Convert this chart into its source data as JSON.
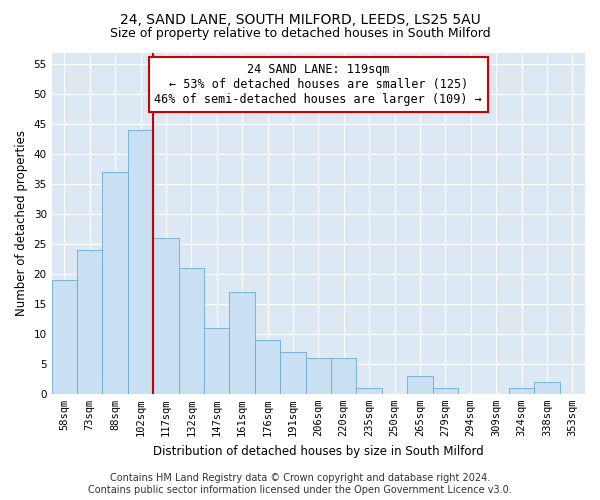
{
  "title1": "24, SAND LANE, SOUTH MILFORD, LEEDS, LS25 5AU",
  "title2": "Size of property relative to detached houses in South Milford",
  "xlabel": "Distribution of detached houses by size in South Milford",
  "ylabel": "Number of detached properties",
  "categories": [
    "58sqm",
    "73sqm",
    "88sqm",
    "102sqm",
    "117sqm",
    "132sqm",
    "147sqm",
    "161sqm",
    "176sqm",
    "191sqm",
    "206sqm",
    "220sqm",
    "235sqm",
    "250sqm",
    "265sqm",
    "279sqm",
    "294sqm",
    "309sqm",
    "324sqm",
    "338sqm",
    "353sqm"
  ],
  "values": [
    19,
    24,
    37,
    44,
    26,
    21,
    11,
    17,
    9,
    7,
    6,
    6,
    1,
    0,
    3,
    1,
    0,
    0,
    1,
    2,
    0
  ],
  "bar_color": "#c9dff2",
  "bar_edge_color": "#6aaad4",
  "vline_x_idx": 3,
  "vline_color": "#cc0000",
  "annotation_text": "24 SAND LANE: 119sqm\n← 53% of detached houses are smaller (125)\n46% of semi-detached houses are larger (109) →",
  "annotation_box_color": "#ffffff",
  "annotation_box_edge": "#cc0000",
  "ylim": [
    0,
    57
  ],
  "yticks": [
    0,
    5,
    10,
    15,
    20,
    25,
    30,
    35,
    40,
    45,
    50,
    55
  ],
  "footer1": "Contains HM Land Registry data © Crown copyright and database right 2024.",
  "footer2": "Contains public sector information licensed under the Open Government Licence v3.0.",
  "bg_color": "#dce9f5",
  "title1_fontsize": 10,
  "title2_fontsize": 9,
  "xlabel_fontsize": 8.5,
  "ylabel_fontsize": 8.5,
  "tick_fontsize": 7.5,
  "annot_fontsize": 8.5,
  "footer_fontsize": 7
}
